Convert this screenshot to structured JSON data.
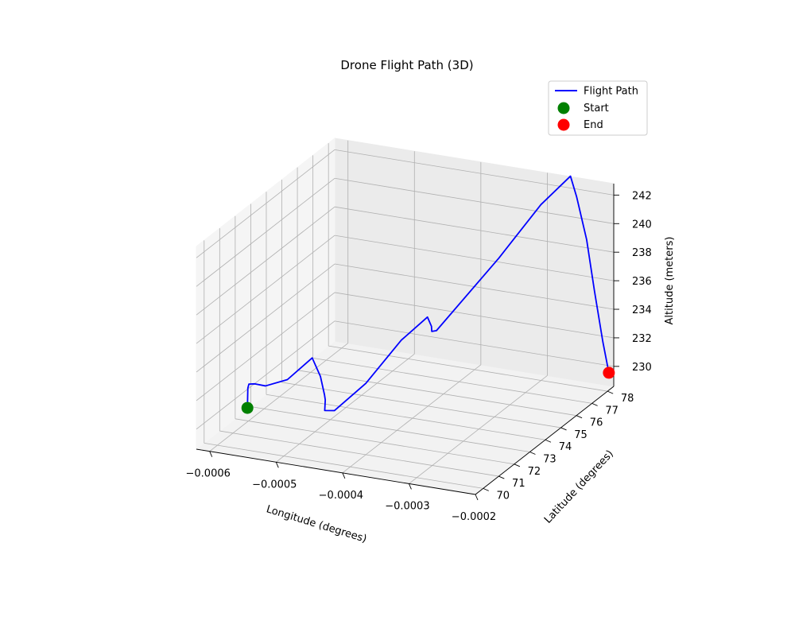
{
  "chart_data": {
    "type": "line",
    "projection": "3d",
    "title": "Drone Flight Path (3D)",
    "xlabel": "Longitude (degrees)",
    "ylabel": "Latitude (degrees)",
    "zlabel": "Altitude (meters)",
    "xlim": [
      -0.00062,
      -0.0002
    ],
    "ylim": [
      69.5,
      78.4
    ],
    "zlim": [
      228.6,
      242.8
    ],
    "x_ticks": [
      "−0.0006",
      "−0.0005",
      "−0.0004",
      "−0.0003",
      "−0.0002"
    ],
    "y_ticks": [
      "70",
      "71",
      "72",
      "73",
      "74",
      "75",
      "76",
      "77",
      "78"
    ],
    "z_ticks": [
      "230",
      "232",
      "234",
      "236",
      "238",
      "240",
      "242"
    ],
    "grid": true,
    "legend": {
      "placement": "upper right",
      "entries": [
        {
          "label": "Flight Path",
          "kind": "line",
          "color": "#0000ff"
        },
        {
          "label": "Start",
          "kind": "marker",
          "color": "#008000"
        },
        {
          "label": "End",
          "kind": "marker",
          "color": "#ff0000"
        }
      ]
    },
    "series": [
      {
        "name": "Flight Path",
        "color": "#0000ff",
        "points": [
          {
            "x": -0.000604,
            "y": 72.1,
            "z": 229.4
          },
          {
            "x": -0.000601,
            "y": 72.0,
            "z": 230.9
          },
          {
            "x": -0.00059,
            "y": 71.6,
            "z": 231.6
          },
          {
            "x": -0.000567,
            "y": 71.0,
            "z": 232.3
          },
          {
            "x": -0.00053,
            "y": 70.1,
            "z": 233.2
          },
          {
            "x": -0.00049,
            "y": 69.8,
            "z": 234.2
          },
          {
            "x": -0.000455,
            "y": 69.9,
            "z": 235.9
          },
          {
            "x": -0.000445,
            "y": 70.0,
            "z": 234.6
          },
          {
            "x": -0.00044,
            "y": 70.05,
            "z": 233.3
          },
          {
            "x": -0.00044,
            "y": 70.1,
            "z": 232.9
          },
          {
            "x": -0.000442,
            "y": 70.15,
            "z": 232.1
          },
          {
            "x": -0.000432,
            "y": 70.35,
            "z": 232.0
          },
          {
            "x": -0.0004,
            "y": 71.0,
            "z": 233.6
          },
          {
            "x": -0.00037,
            "y": 72.0,
            "z": 236.0
          },
          {
            "x": -0.00034,
            "y": 72.4,
            "z": 237.5
          },
          {
            "x": -0.000334,
            "y": 72.4,
            "z": 236.9
          },
          {
            "x": -0.00033,
            "y": 72.25,
            "z": 236.7
          },
          {
            "x": -0.00033,
            "y": 72.55,
            "z": 236.5
          },
          {
            "x": -0.00027,
            "y": 74.0,
            "z": 240.8
          },
          {
            "x": -0.00023,
            "y": 75.0,
            "z": 244.0
          },
          {
            "x": -0.000209,
            "y": 76.0,
            "z": 245.3
          },
          {
            "x": -0.000209,
            "y": 76.4,
            "z": 243.5
          },
          {
            "x": -0.000208,
            "y": 77.0,
            "z": 240.0
          },
          {
            "x": -0.000208,
            "y": 77.5,
            "z": 236.0
          },
          {
            "x": -0.000207,
            "y": 78.0,
            "z": 232.0
          },
          {
            "x": -0.000205,
            "y": 78.3,
            "z": 229.6
          }
        ]
      }
    ],
    "markers": [
      {
        "name": "Start",
        "color": "#008000",
        "x": -0.000604,
        "y": 72.1,
        "z": 229.4
      },
      {
        "name": "End",
        "color": "#ff0000",
        "x": -0.000205,
        "y": 78.3,
        "z": 229.6
      }
    ]
  }
}
